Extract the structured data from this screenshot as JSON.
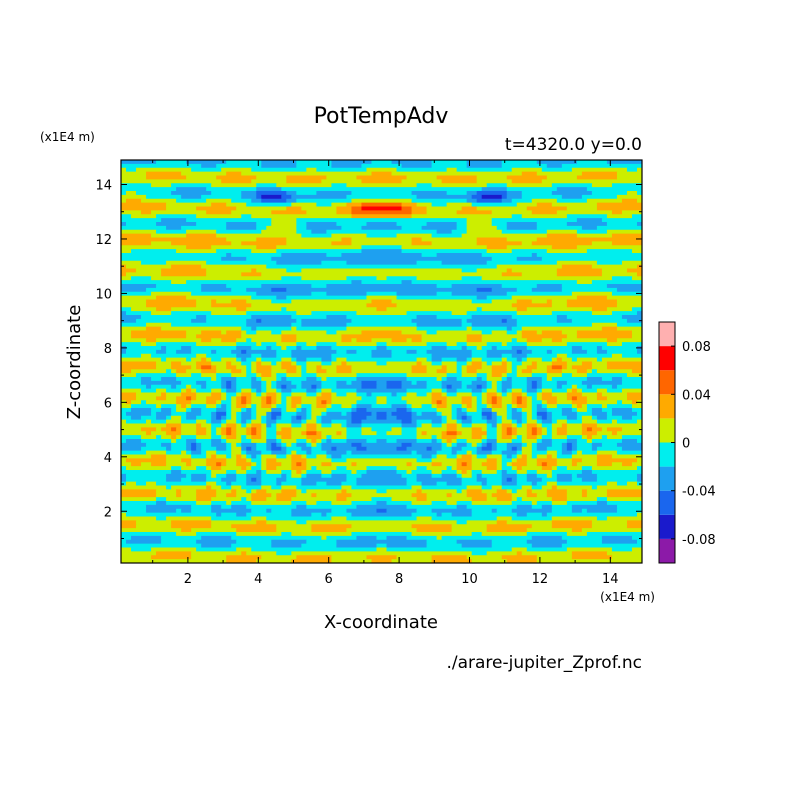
{
  "chart_data": {
    "type": "heatmap",
    "title": "PotTempAdv",
    "subtitle": "t=4320.0 y=0.0",
    "xlabel": "X-coordinate",
    "ylabel": "Z-coordinate",
    "x_unit": "(x1E4 m)",
    "y_unit": "(x1E4 m)",
    "xlim": [
      0.1,
      14.9
    ],
    "ylim": [
      0.1,
      14.9
    ],
    "x_ticks": [
      2,
      4,
      6,
      8,
      10,
      12,
      14
    ],
    "y_ticks": [
      2,
      4,
      6,
      8,
      10,
      12,
      14
    ],
    "x_tick_labels": [
      "2",
      "4",
      "6",
      "8",
      "10",
      "12",
      "14"
    ],
    "y_tick_labels": [
      "2",
      "4",
      "6",
      "8",
      "10",
      "12",
      "14"
    ],
    "grid": false,
    "colorbar": {
      "levels": [
        -0.1,
        -0.08,
        -0.06,
        -0.04,
        -0.02,
        0,
        0.02,
        0.04,
        0.06,
        0.08,
        0.1
      ],
      "colors": [
        "#8c1aa8",
        "#1a1acc",
        "#1a66ee",
        "#1ea0f0",
        "#00eeee",
        "#ccee00",
        "#ffaa00",
        "#ff6600",
        "#ff0000",
        "#ffb0b0"
      ],
      "tick_values": [
        -0.08,
        -0.04,
        0,
        0.04,
        0.08
      ],
      "tick_labels": [
        "-0.08",
        "-0.04",
        "0",
        "0.04",
        "0.08"
      ]
    },
    "source_file": "./arare-jupiter_Zprof.nc"
  },
  "colors": {
    "background": "#ffffff",
    "frame": "#000000"
  }
}
